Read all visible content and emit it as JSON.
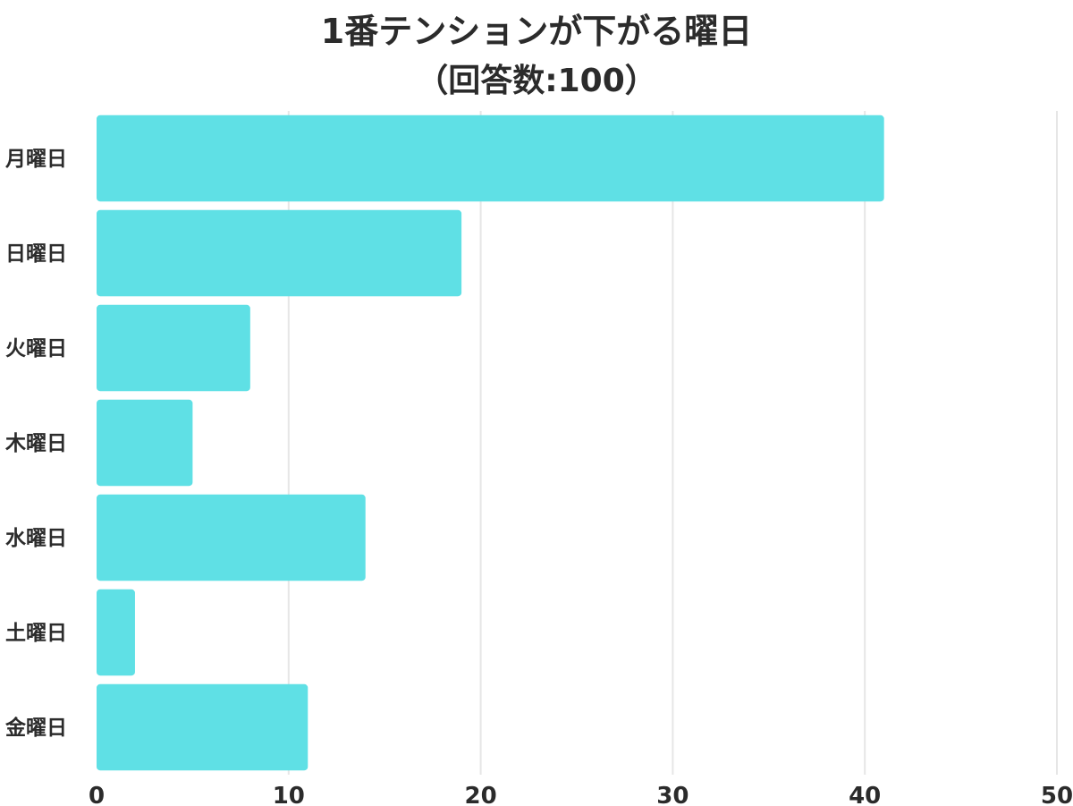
{
  "chart_data": {
    "type": "bar",
    "orientation": "horizontal",
    "title": "1番テンションが下がる曜日",
    "subtitle": "（回答数:100）",
    "categories": [
      "月曜日",
      "日曜日",
      "火曜日",
      "木曜日",
      "水曜日",
      "土曜日",
      "金曜日"
    ],
    "values": [
      41,
      19,
      8,
      5,
      14,
      2,
      11
    ],
    "xlim": [
      0,
      50
    ],
    "xticks": [
      "0",
      "10",
      "20",
      "30",
      "40",
      "50"
    ],
    "grid": true,
    "bar_color": "#5fe0e5",
    "grid_color": "#e6e6e6",
    "text_color": "#2b2b2b"
  }
}
